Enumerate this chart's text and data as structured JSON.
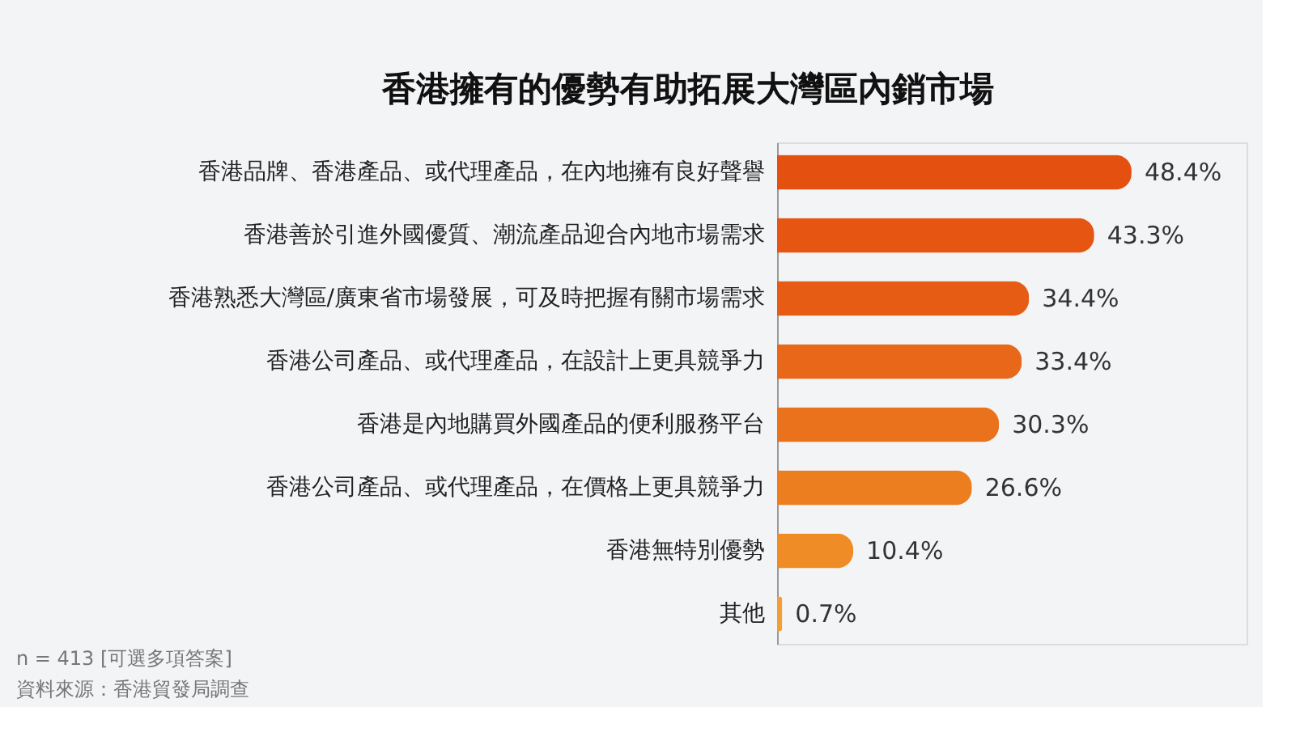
{
  "chart_data": {
    "type": "bar",
    "orientation": "horizontal",
    "title": "香港擁有的優勢有助拓展大灣區內銷市場",
    "categories": [
      "香港品牌、香港產品、或代理產品，在內地擁有良好聲譽",
      "香港善於引進外國優質、潮流產品迎合內地市場需求",
      "香港熟悉大灣區/廣東省市場發展，可及時把握有關市場需求",
      "香港公司產品、或代理產品，在設計上更具競爭力",
      "香港是內地購買外國產品的便利服務平台",
      "香港公司產品、或代理產品，在價格上更具競爭力",
      "香港無特別優勢",
      "其他"
    ],
    "values": [
      48.4,
      43.3,
      34.4,
      33.4,
      30.3,
      26.6,
      10.4,
      0.7
    ],
    "value_labels": [
      "48.4%",
      "43.3%",
      "34.4%",
      "33.4%",
      "30.3%",
      "26.6%",
      "10.4%",
      "0.7%"
    ],
    "colors": [
      "#e4500f",
      "#e65512",
      "#e75c15",
      "#e96718",
      "#eb721c",
      "#ed7e20",
      "#ef8c26",
      "#f2a035"
    ],
    "annotations": [
      "n = 413 [可選多項答案]",
      "資料來源：香港貿發局調查"
    ]
  }
}
